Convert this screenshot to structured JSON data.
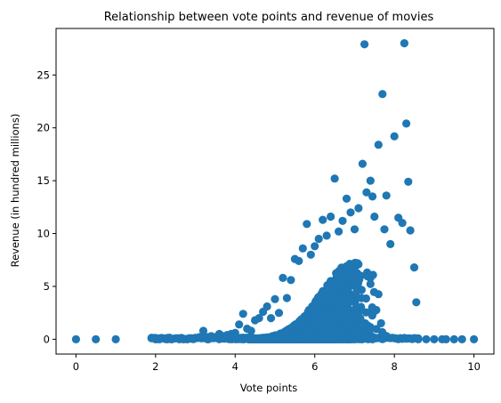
{
  "chart_data": {
    "type": "scatter",
    "title": "Relationship between vote points and revenue of movies",
    "xlabel": "Vote points",
    "ylabel": "Revenue (in hundred millions)",
    "xlim": [
      -0.5,
      10.5
    ],
    "ylim": [
      -1.4,
      29.4
    ],
    "xticks": [
      0,
      2,
      4,
      6,
      8,
      10
    ],
    "yticks": [
      0,
      5,
      10,
      15,
      20,
      25
    ],
    "grid": false,
    "legend": "none",
    "color": "#1f77b4",
    "series": [
      {
        "points": [
          [
            0,
            0
          ],
          [
            0.5,
            0
          ],
          [
            1,
            0
          ],
          [
            1.9,
            0.1
          ],
          [
            2,
            0
          ],
          [
            2.1,
            0
          ],
          [
            2.3,
            0
          ],
          [
            2.4,
            0
          ],
          [
            2.6,
            0
          ],
          [
            2.7,
            0
          ],
          [
            2.8,
            0
          ],
          [
            2.9,
            0.1
          ],
          [
            3.0,
            0.1
          ],
          [
            3.1,
            0.2
          ],
          [
            3.2,
            0.8
          ],
          [
            3.3,
            0.2
          ],
          [
            3.4,
            0.3
          ],
          [
            3.5,
            0.2
          ],
          [
            3.6,
            0.5
          ],
          [
            3.7,
            0.3
          ],
          [
            3.8,
            0.4
          ],
          [
            3.9,
            0.5
          ],
          [
            4.0,
            0.6
          ],
          [
            4.1,
            1.4
          ],
          [
            4.2,
            2.4
          ],
          [
            4.3,
            1.0
          ],
          [
            4.4,
            0.8
          ],
          [
            4.5,
            1.8
          ],
          [
            4.6,
            2.0
          ],
          [
            4.7,
            2.6
          ],
          [
            4.8,
            3.1
          ],
          [
            4.9,
            2.0
          ],
          [
            5.0,
            3.8
          ],
          [
            5.1,
            2.5
          ],
          [
            5.2,
            5.8
          ],
          [
            5.3,
            3.9
          ],
          [
            5.4,
            5.6
          ],
          [
            5.5,
            7.6
          ],
          [
            5.6,
            7.4
          ],
          [
            5.7,
            8.6
          ],
          [
            5.8,
            10.9
          ],
          [
            5.9,
            8.0
          ],
          [
            6.0,
            8.8
          ],
          [
            6.1,
            9.5
          ],
          [
            6.2,
            11.3
          ],
          [
            6.3,
            9.8
          ],
          [
            6.4,
            11.6
          ],
          [
            6.5,
            15.2
          ],
          [
            6.6,
            10.2
          ],
          [
            6.7,
            11.2
          ],
          [
            6.8,
            13.3
          ],
          [
            6.9,
            12.0
          ],
          [
            7.0,
            10.4
          ],
          [
            7.1,
            12.4
          ],
          [
            7.2,
            16.6
          ],
          [
            7.25,
            27.9
          ],
          [
            7.3,
            13.9
          ],
          [
            7.4,
            15.0
          ],
          [
            7.45,
            13.5
          ],
          [
            7.5,
            11.6
          ],
          [
            7.6,
            18.4
          ],
          [
            7.7,
            23.2
          ],
          [
            7.75,
            10.4
          ],
          [
            7.8,
            13.6
          ],
          [
            7.9,
            9.0
          ],
          [
            8.0,
            19.2
          ],
          [
            8.1,
            11.5
          ],
          [
            8.2,
            11.0
          ],
          [
            8.25,
            28.0
          ],
          [
            8.3,
            20.4
          ],
          [
            8.35,
            14.9
          ],
          [
            8.4,
            10.3
          ],
          [
            8.5,
            6.8
          ],
          [
            8.55,
            3.5
          ],
          [
            8.6,
            0
          ],
          [
            8.8,
            0
          ],
          [
            9.0,
            0
          ],
          [
            9.2,
            0
          ],
          [
            9.3,
            0
          ],
          [
            9.5,
            0
          ],
          [
            9.7,
            0
          ],
          [
            10,
            0
          ]
        ]
      }
    ]
  }
}
